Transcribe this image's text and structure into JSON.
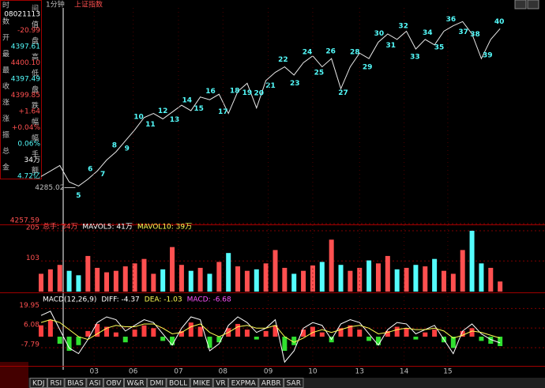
{
  "top_bar": {
    "period": "1分钟",
    "index_name": "上证指数"
  },
  "info_panel": {
    "rows": [
      {
        "label": [
          "时",
          "间"
        ],
        "value": "08021113",
        "color": "#ffffff"
      },
      {
        "label": [
          "数",
          "值"
        ],
        "value": "-20.99",
        "color": "#ff5050"
      },
      {
        "label": [
          "开",
          "盘"
        ],
        "value": "4397.61",
        "color": "#54fcfc"
      },
      {
        "label": [
          "最",
          "高"
        ],
        "value": "4400.10",
        "color": "#ff5050"
      },
      {
        "label": [
          "最",
          "低"
        ],
        "value": "4397.49",
        "color": "#54fcfc"
      },
      {
        "label": [
          "收",
          "盘"
        ],
        "value": "4399.85",
        "color": "#ff5050"
      },
      {
        "label": [
          "涨",
          "跌"
        ],
        "value": "+1.64",
        "color": "#ff5050"
      },
      {
        "label": [
          "涨",
          "幅"
        ],
        "value": "+0.04%",
        "color": "#ff5050"
      },
      {
        "label": [
          "振",
          "幅"
        ],
        "value": "0.06%",
        "color": "#54fcfc"
      },
      {
        "label": [
          "总",
          "手"
        ],
        "value": "34万",
        "color": "#ffffff"
      },
      {
        "label": [
          "金",
          "额"
        ],
        "value": "4.72亿",
        "color": "#54fcfc"
      }
    ]
  },
  "tabs": [
    "KDJ",
    "RSI",
    "BIAS",
    "ASI",
    "OBV",
    "W&R",
    "DMI",
    "BOLL",
    "MIKE",
    "VR",
    "EXPMA",
    "ARBR",
    "SAR"
  ],
  "chart_data": [
    {
      "type": "line",
      "color": "#e8e8e8",
      "x": [
        0,
        12,
        24,
        36,
        48,
        60,
        72,
        84,
        96,
        108,
        120,
        132,
        144,
        156,
        168,
        180,
        192,
        204,
        216,
        228,
        240,
        252,
        264,
        276,
        288,
        300,
        312,
        324,
        336,
        348,
        360,
        372,
        384,
        396,
        408,
        420,
        432,
        444,
        456,
        468,
        480,
        492,
        504,
        516,
        528,
        540,
        552,
        564,
        576,
        588
      ],
      "values": [
        4292,
        4296,
        4300,
        4288,
        4285.02,
        4290,
        4296,
        4304,
        4310,
        4318,
        4326,
        4335,
        4338,
        4334,
        4339,
        4344,
        4340,
        4350,
        4348,
        4352,
        4338,
        4354,
        4360,
        4342,
        4362,
        4368,
        4372,
        4366,
        4375,
        4380,
        4372,
        4378,
        4356,
        4372,
        4382,
        4378,
        4390,
        4396,
        4392,
        4398,
        4385,
        4392,
        4388,
        4398,
        4402,
        4405,
        4396,
        4378,
        4392,
        4399.85
      ],
      "xlim": [
        0,
        600
      ],
      "ylim": [
        4257.59,
        4415
      ],
      "yticks": [
        4257.59
      ],
      "low_label": {
        "x": 48,
        "label": "4285.02"
      },
      "wave_labels": [
        {
          "x": 48,
          "label": "5"
        },
        {
          "x": 63,
          "label": "6"
        },
        {
          "x": 79,
          "label": "7"
        },
        {
          "x": 94,
          "label": "8"
        },
        {
          "x": 110,
          "label": "9"
        },
        {
          "x": 125,
          "label": "10"
        },
        {
          "x": 140,
          "label": "11"
        },
        {
          "x": 156,
          "label": "12"
        },
        {
          "x": 171,
          "label": "13"
        },
        {
          "x": 187,
          "label": "14"
        },
        {
          "x": 202,
          "label": "15"
        },
        {
          "x": 217,
          "label": "16"
        },
        {
          "x": 233,
          "label": "17"
        },
        {
          "x": 248,
          "label": "18"
        },
        {
          "x": 264,
          "label": "19"
        },
        {
          "x": 279,
          "label": "20"
        },
        {
          "x": 294,
          "label": "21"
        },
        {
          "x": 310,
          "label": "22"
        },
        {
          "x": 325,
          "label": "23"
        },
        {
          "x": 341,
          "label": "24"
        },
        {
          "x": 356,
          "label": "25"
        },
        {
          "x": 371,
          "label": "26"
        },
        {
          "x": 387,
          "label": "27"
        },
        {
          "x": 402,
          "label": "28"
        },
        {
          "x": 418,
          "label": "29"
        },
        {
          "x": 433,
          "label": "30"
        },
        {
          "x": 448,
          "label": "31"
        },
        {
          "x": 464,
          "label": "32"
        },
        {
          "x": 479,
          "label": "33"
        },
        {
          "x": 495,
          "label": "34"
        },
        {
          "x": 510,
          "label": "35"
        },
        {
          "x": 525,
          "label": "36"
        },
        {
          "x": 541,
          "label": "37"
        },
        {
          "x": 556,
          "label": "38"
        },
        {
          "x": 572,
          "label": "39"
        },
        {
          "x": 587,
          "label": "40"
        }
      ]
    },
    {
      "type": "bar",
      "colors": [
        "#ff5050",
        "#54fcfc"
      ],
      "title_parts": [
        {
          "text": "总手: 34万",
          "color": "#ff5050"
        },
        {
          "text": "MAVOL5: 41万",
          "color": "#ffffff"
        },
        {
          "text": "MAVOL10: 39万",
          "color": "#ffff54"
        }
      ],
      "x": [
        0,
        12,
        24,
        36,
        48,
        60,
        72,
        84,
        96,
        108,
        120,
        132,
        144,
        156,
        168,
        180,
        192,
        204,
        216,
        228,
        240,
        252,
        264,
        276,
        288,
        300,
        312,
        324,
        336,
        348,
        360,
        372,
        384,
        396,
        408,
        420,
        432,
        444,
        456,
        468,
        480,
        492,
        504,
        516,
        528,
        540,
        552,
        564,
        576,
        588
      ],
      "values": [
        60,
        75,
        90,
        70,
        55,
        120,
        80,
        65,
        70,
        85,
        95,
        110,
        60,
        75,
        150,
        90,
        70,
        80,
        60,
        100,
        130,
        85,
        70,
        75,
        95,
        140,
        80,
        60,
        70,
        88,
        100,
        175,
        90,
        70,
        80,
        105,
        95,
        120,
        75,
        80,
        90,
        85,
        110,
        70,
        60,
        140,
        205,
        95,
        80,
        34
      ],
      "xlim": [
        0,
        600
      ],
      "ylim": [
        0,
        205
      ],
      "yticks": [
        103,
        205
      ]
    },
    {
      "type": "bar",
      "colors": [
        "#ff4040",
        "#30e030"
      ],
      "title_parts": [
        {
          "text": "MACD(12,26,9)",
          "color": "#ffffff"
        },
        {
          "text": "DIFF: -4.37",
          "color": "#ffffff"
        },
        {
          "text": "DEA: -1.03",
          "color": "#ffff54"
        },
        {
          "text": "MACD: -6.68",
          "color": "#ff54ff"
        }
      ],
      "x": [
        0,
        12,
        24,
        36,
        48,
        60,
        72,
        84,
        96,
        108,
        120,
        132,
        144,
        156,
        168,
        180,
        192,
        204,
        216,
        228,
        240,
        252,
        264,
        276,
        288,
        300,
        312,
        324,
        336,
        348,
        360,
        372,
        384,
        396,
        408,
        420,
        432,
        444,
        456,
        468,
        480,
        492,
        504,
        516,
        528,
        540,
        552,
        564,
        576,
        588
      ],
      "values": [
        8,
        12,
        -5,
        -10,
        -6,
        4,
        9,
        7,
        3,
        -4,
        5,
        8,
        6,
        -3,
        -6,
        4,
        10,
        7,
        -8,
        -4,
        6,
        9,
        5,
        -2,
        4,
        8,
        -10,
        -6,
        5,
        7,
        3,
        -4,
        6,
        8,
        5,
        -3,
        -6,
        4,
        7,
        6,
        -2,
        3,
        5,
        -4,
        -8,
        4,
        6,
        -3,
        -5,
        -6.68
      ],
      "series": [
        {
          "color": "#ffffff",
          "values": [
            15,
            18,
            5,
            -8,
            -12,
            -2,
            10,
            14,
            12,
            4,
            8,
            12,
            10,
            2,
            -6,
            6,
            14,
            12,
            -10,
            -5,
            8,
            14,
            10,
            3,
            6,
            12,
            -18,
            -10,
            6,
            10,
            8,
            -2,
            9,
            12,
            10,
            2,
            -6,
            5,
            10,
            9,
            2,
            5,
            8,
            -2,
            -12,
            4,
            9,
            2,
            -2,
            -4.37
          ]
        },
        {
          "color": "#ffff54",
          "values": [
            10,
            12,
            10,
            5,
            0,
            -2,
            2,
            6,
            8,
            7,
            7,
            9,
            9,
            6,
            2,
            3,
            7,
            9,
            3,
            0,
            3,
            7,
            8,
            6,
            6,
            8,
            0,
            -4,
            -1,
            3,
            5,
            3,
            5,
            7,
            8,
            6,
            2,
            3,
            5,
            6,
            5,
            5,
            6,
            4,
            -1,
            1,
            4,
            3,
            1,
            -1.03
          ]
        }
      ],
      "xlim": [
        0,
        600
      ],
      "ylim": [
        -20.1,
        23.5
      ],
      "yticks": [
        -7.79,
        6.08,
        19.95
      ],
      "xticks": [
        {
          "value": 68,
          "label": "03"
        },
        {
          "value": 118,
          "label": "06"
        },
        {
          "value": 176,
          "label": "07"
        },
        {
          "value": 233,
          "label": "08"
        },
        {
          "value": 291,
          "label": "09"
        },
        {
          "value": 348,
          "label": "10"
        },
        {
          "value": 408,
          "label": "13"
        },
        {
          "value": 465,
          "label": "14"
        },
        {
          "value": 521,
          "label": "15"
        }
      ]
    }
  ]
}
